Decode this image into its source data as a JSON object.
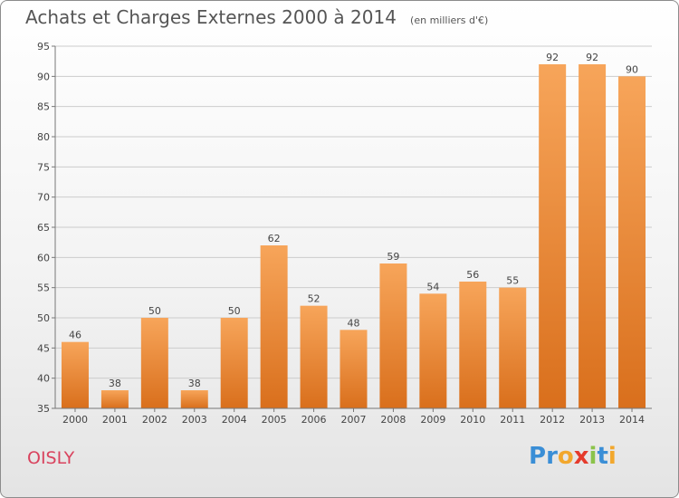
{
  "title": "Achats et Charges Externes 2000 à 2014",
  "unit": "(en milliers d'€)",
  "place": "OISLY",
  "logo": {
    "text": "Proxiti",
    "colors": [
      "#3a8ed6",
      "#3a8ed6",
      "#f2a72c",
      "#e53b2c",
      "#8bc34a",
      "#3a8ed6",
      "#f2a72c"
    ]
  },
  "colors": {
    "bar_light": "#f7a55a",
    "bar_dark": "#d96f1c",
    "title": "#555555",
    "place": "#d9435e",
    "grid": "#cccccc"
  },
  "chart_data": {
    "type": "bar",
    "categories": [
      "2000",
      "2001",
      "2002",
      "2003",
      "2004",
      "2005",
      "2006",
      "2007",
      "2008",
      "2009",
      "2010",
      "2011",
      "2012",
      "2013",
      "2014"
    ],
    "values": [
      46,
      38,
      50,
      38,
      50,
      62,
      52,
      48,
      59,
      54,
      56,
      55,
      92,
      92,
      90
    ],
    "ylim": [
      35,
      95
    ],
    "yticks": [
      35,
      40,
      45,
      50,
      55,
      60,
      65,
      70,
      75,
      80,
      85,
      90,
      95
    ],
    "grid": "horizontal",
    "data_labels": true
  }
}
